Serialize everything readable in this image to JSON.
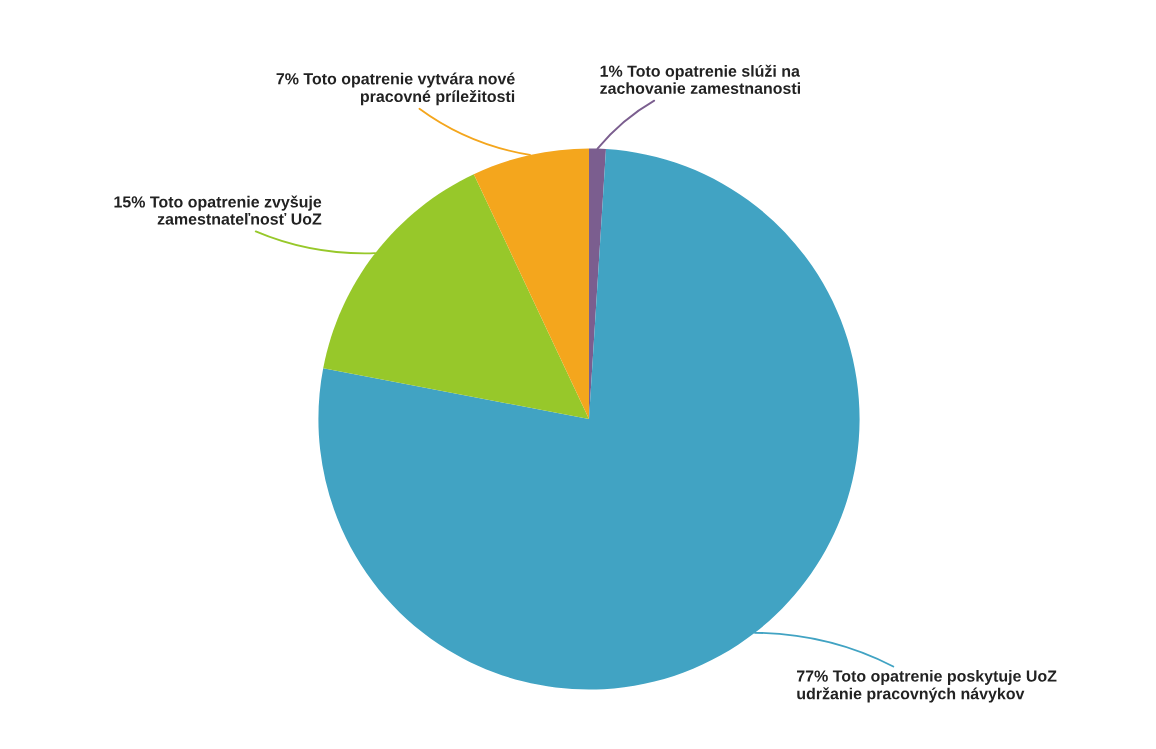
{
  "chart_data": {
    "type": "pie",
    "categories": [
      "Toto opatrenie slúži na\nzachovanie zamestnanosti",
      "Toto opatrenie poskytuje UoZ\nudržanie pracovných návykov",
      "Toto opatrenie zvyšuje\nzamestnateľnosť UoZ",
      "Toto opatrenie vytvára nové\npracovné príležitosti"
    ],
    "values": [
      1,
      77,
      15,
      7
    ],
    "value_labels": [
      "1%",
      "77%",
      "15%",
      "7%"
    ],
    "colors": [
      "#7b5e8f",
      "#41a3c3",
      "#97c82a",
      "#f4a61d"
    ]
  }
}
